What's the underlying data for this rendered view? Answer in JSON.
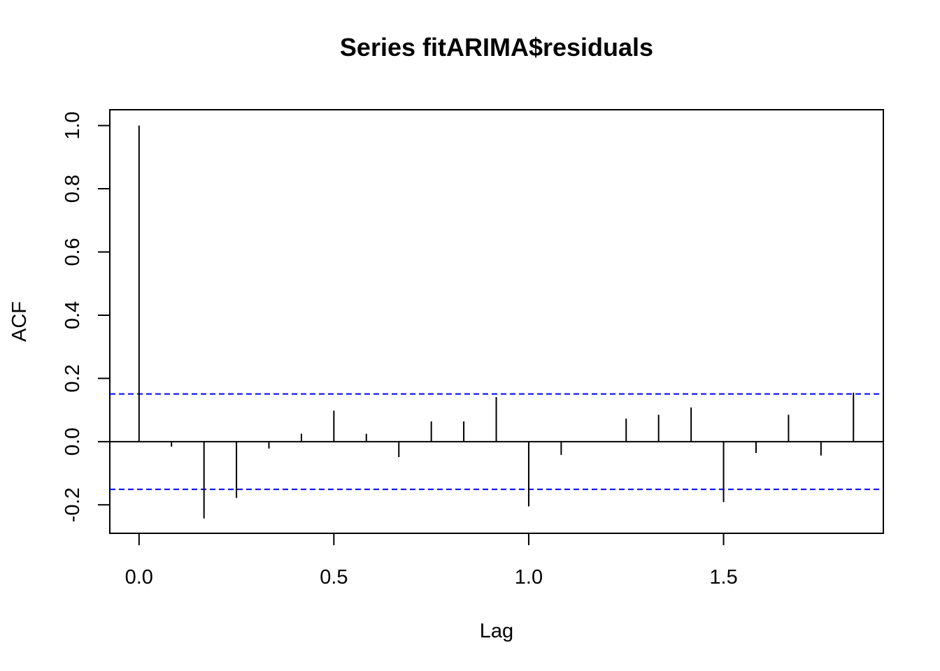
{
  "chart_data": {
    "type": "bar",
    "title": "Series  fitARIMA$residuals",
    "xlabel": "Lag",
    "ylabel": "ACF",
    "xlim": [
      -0.075,
      1.91
    ],
    "ylim": [
      -0.29,
      1.05
    ],
    "x_ticks": [
      0.0,
      0.5,
      1.0,
      1.5
    ],
    "x_tick_labels": [
      "0.0",
      "0.5",
      "1.0",
      "1.5"
    ],
    "y_ticks": [
      -0.2,
      0.0,
      0.2,
      0.4,
      0.6,
      0.8,
      1.0
    ],
    "y_tick_labels": [
      "-0.2",
      "0.0",
      "0.2",
      "0.4",
      "0.6",
      "0.8",
      "1.0"
    ],
    "grid": false,
    "box": true,
    "zero_line": true,
    "confidence_bounds": {
      "upper": 0.151,
      "lower": -0.151,
      "color": "#0000ff",
      "style": "dashed"
    },
    "bar_color": "#000000",
    "series": [
      {
        "x": [
          0.0,
          0.0833,
          0.1667,
          0.25,
          0.3333,
          0.4167,
          0.5,
          0.5833,
          0.6667,
          0.75,
          0.8333,
          0.9167,
          1.0,
          1.0833,
          1.1667,
          1.25,
          1.3333,
          1.4167,
          1.5,
          1.5833,
          1.6667,
          1.75,
          1.8333
        ],
        "values": [
          1.0,
          -0.016,
          -0.243,
          -0.178,
          -0.022,
          0.025,
          0.098,
          0.025,
          -0.049,
          0.064,
          0.064,
          0.141,
          -0.205,
          -0.042,
          0.0,
          0.073,
          0.085,
          0.108,
          -0.191,
          -0.036,
          0.085,
          -0.044,
          0.155
        ]
      }
    ]
  }
}
